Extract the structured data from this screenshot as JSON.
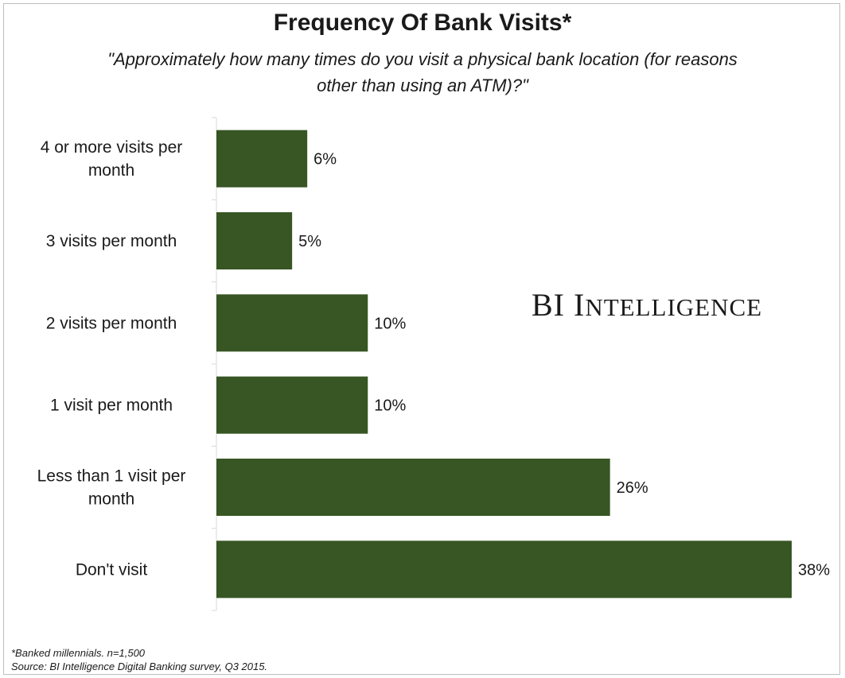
{
  "chart_data": {
    "type": "bar",
    "orientation": "horizontal",
    "title": "Frequency Of Bank Visits*",
    "subtitle": "\"Approximately how many times do you visit a physical bank location (for reasons other than using an ATM)?\"",
    "categories": [
      [
        "4 or more visits per",
        "month"
      ],
      [
        "3 visits per month"
      ],
      [
        "2 visits per month"
      ],
      [
        "1 visit per month"
      ],
      [
        "Less than 1 visit per",
        "month"
      ],
      [
        "Don't visit"
      ]
    ],
    "values": [
      6,
      5,
      10,
      10,
      26,
      38
    ],
    "value_labels": [
      "6%",
      "5%",
      "10%",
      "10%",
      "26%",
      "38%"
    ],
    "xlim": [
      0,
      38
    ],
    "bar_color": "#375623",
    "grid": false,
    "legend": "none"
  },
  "watermark": {
    "first": "BI ",
    "initial": "I",
    "rest": "NTELLIGENCE"
  },
  "footnotes": {
    "sample": "*Banked millennials. n=1,500",
    "source": "Source: BI Intelligence Digital Banking survey, Q3 2015."
  }
}
